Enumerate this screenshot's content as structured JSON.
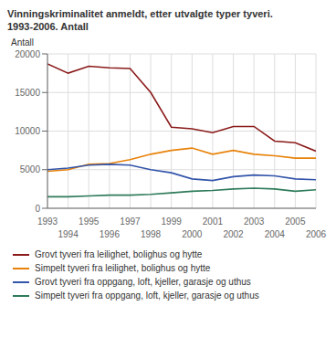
{
  "chart_data": {
    "type": "line",
    "title": "Vinningskriminalitet anmeldt, etter utvalgte typer tyveri.",
    "subtitle": "1993-2006. Antall",
    "y_label": "Antall",
    "x": [
      1993,
      1994,
      1995,
      1996,
      1997,
      1998,
      1999,
      2000,
      2001,
      2002,
      2003,
      2004,
      2005,
      2006
    ],
    "series": [
      {
        "name": "Grovt tyveri fra leilighet, bolighus og hytte",
        "color": "#8B1A1A",
        "values": [
          18700,
          17500,
          18400,
          18200,
          18100,
          15000,
          10500,
          10300,
          9800,
          10600,
          10600,
          8700,
          8500,
          7400
        ]
      },
      {
        "name": "Simpelt tyveri fra leilighet, bolighus og hytte",
        "color": "#E8820A",
        "values": [
          4800,
          5000,
          5700,
          5800,
          6300,
          7000,
          7500,
          7800,
          7000,
          7500,
          7000,
          6800,
          6500,
          6500
        ]
      },
      {
        "name": "Grovt tyveri fra oppgang, loft, kjeller, garasje og uthus",
        "color": "#3355AA",
        "values": [
          5000,
          5200,
          5600,
          5700,
          5600,
          5000,
          4600,
          3800,
          3600,
          4100,
          4300,
          4200,
          3800,
          3700
        ]
      },
      {
        "name": "Simpelt tyveri fra oppgang, loft, kjeller, garasje og uthus",
        "color": "#2E7B5A",
        "values": [
          1500,
          1500,
          1600,
          1700,
          1700,
          1800,
          2000,
          2200,
          2300,
          2500,
          2600,
          2500,
          2200,
          2400
        ]
      }
    ],
    "xlim": [
      1993,
      2006
    ],
    "xticks": [
      1993,
      1994,
      1995,
      1996,
      1997,
      1998,
      1999,
      2000,
      2001,
      2002,
      2003,
      2004,
      2005,
      2006
    ],
    "ylim": [
      0,
      20000
    ],
    "yticks": [
      0,
      5000,
      10000,
      15000,
      20000
    ],
    "grid": true,
    "legend": "bottom"
  }
}
